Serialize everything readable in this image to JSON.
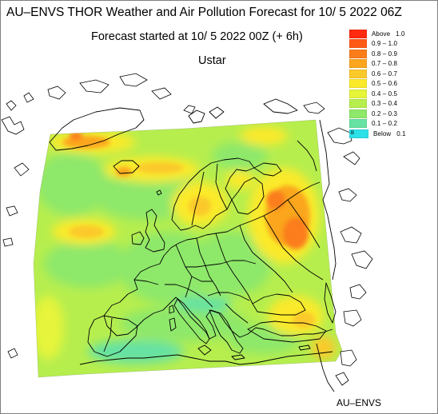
{
  "header": {
    "title": "AU–ENVS THOR Weather and Air Pollution Forecast for 10/ 5 2022  06Z",
    "subtitle": "Forecast started at 10/ 5 2022  00Z (+ 6h)",
    "variable": "Ustar"
  },
  "footer": {
    "credit": "AU–ENVS"
  },
  "legend": {
    "entries": [
      {
        "label": "Above   1.0",
        "color": "#ff2a10"
      },
      {
        "label": "0.9 – 1.0",
        "color": "#ff5a14"
      },
      {
        "label": "0.8 – 0.9",
        "color": "#fb7d1a"
      },
      {
        "label": "0.7 – 0.8",
        "color": "#fba61e"
      },
      {
        "label": "0.6 – 0.7",
        "color": "#fbc92a"
      },
      {
        "label": "0.5 – 0.6",
        "color": "#fbea2a"
      },
      {
        "label": "0.4 – 0.5",
        "color": "#e6f43a"
      },
      {
        "label": "0.3 – 0.4",
        "color": "#b6ee4e"
      },
      {
        "label": "0.2 – 0.3",
        "color": "#8ee86a"
      },
      {
        "label": "0.1 – 0.2",
        "color": "#66e2a2"
      },
      {
        "label": "Below   0.1",
        "color": "#2ee0e8",
        "marker": "B"
      }
    ]
  },
  "colors": {
    "field_base": "#b6ee4e",
    "field_low": "#8ee86a",
    "field_high": "#fbea2a",
    "field_peak": "#fb7d1a",
    "coastline": "#000000",
    "frame": "#7f7f7f"
  }
}
